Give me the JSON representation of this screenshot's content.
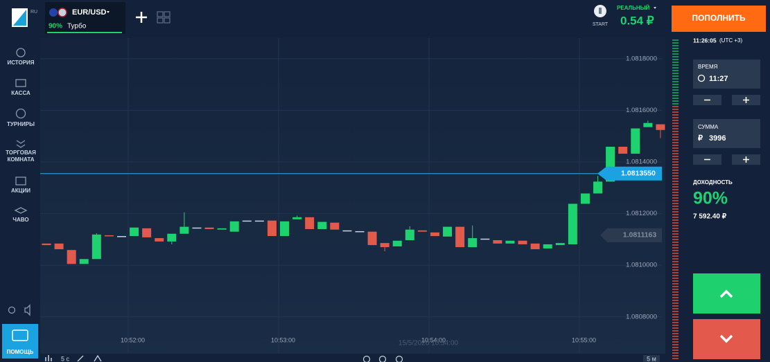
{
  "header": {
    "logo_locale": "RU",
    "asset": "EUR/USD",
    "payout": "90%",
    "mode": "Турбо",
    "start": "START",
    "account": "РЕАЛЬНЫЙ",
    "balance": "0.54 ₽",
    "deposit_button": "ПОПОЛНИТЬ"
  },
  "sidebar": {
    "history": "ИСТОРИЯ",
    "cashier": "КАССА",
    "tournaments": "ТУРНИРЫ",
    "trading_room": [
      "ТОРГОВАЯ",
      "КОМНАТА"
    ],
    "promotions": "АКЦИИ",
    "faq": "ЧАВО",
    "help": "ПОМОЩЬ"
  },
  "panel": {
    "server_time": "11:26:05",
    "timezone": "(UTC +3)",
    "time_label": "ВРЕМЯ",
    "time": "11:27",
    "amount_label": "СУММА",
    "currency": "₽",
    "amount": "3996",
    "yield_label": "ДОХОДНОСТЬ",
    "yield": "90%",
    "profit": "7 592.40 ₽"
  },
  "chart": {
    "type": "candlestick",
    "ylim": [
      1.08066,
      1.08188
    ],
    "yticks": [
      {
        "value": 1.0818,
        "label": "1.0818000"
      },
      {
        "value": 1.0816,
        "label": "1.0816000"
      },
      {
        "value": 1.0814,
        "label": "1.0814000"
      },
      {
        "value": 1.0812,
        "label": "1.0812000"
      },
      {
        "value": 1.081,
        "label": "1.0810000"
      },
      {
        "value": 1.0808,
        "label": "1.0808000"
      }
    ],
    "xticks": [
      "10:52:00",
      "10:53:00",
      "10:54:00",
      "10:55:00"
    ],
    "date_label": "15/5/2020 10:54:00",
    "current_price": {
      "value": 1.081355,
      "label": "1.0813550"
    },
    "marker_price": 1.0811163,
    "up_color": "#1ed26f",
    "down_color": "#e25a4c",
    "timeframe": "5 с",
    "chart_period": "5 м",
    "candles": [
      {
        "o": 1.081084,
        "c": 1.081078
      },
      {
        "o": 1.081084,
        "c": 1.081062
      },
      {
        "o": 1.081059,
        "c": 1.081005
      },
      {
        "o": 1.081005,
        "c": 1.081024
      },
      {
        "o": 1.081024,
        "c": 1.081119,
        "h": 1.081124
      },
      {
        "o": 1.081116,
        "c": 1.081113
      },
      {
        "o": 1.081113,
        "c": 1.081113
      },
      {
        "o": 1.081113,
        "c": 1.081146
      },
      {
        "o": 1.081143,
        "c": 1.081108
      },
      {
        "o": 1.081105,
        "c": 1.081092
      },
      {
        "o": 1.081092,
        "c": 1.081122,
        "l": 1.081081
      },
      {
        "o": 1.081122,
        "c": 1.081149,
        "h": 1.081205
      },
      {
        "o": 1.081146,
        "c": 1.081146
      },
      {
        "o": 1.081146,
        "c": 1.08114
      },
      {
        "o": 1.081138,
        "c": 1.081143
      },
      {
        "o": 1.08113,
        "c": 1.08117
      },
      {
        "o": 1.081173,
        "c": 1.081173
      },
      {
        "o": 1.081173,
        "c": 1.081173
      },
      {
        "o": 1.081173,
        "c": 1.081113
      },
      {
        "o": 1.081113,
        "c": 1.08117
      },
      {
        "o": 1.081178,
        "c": 1.081186,
        "h": 1.081192
      },
      {
        "o": 1.081186,
        "c": 1.08114
      },
      {
        "o": 1.08114,
        "c": 1.081168
      },
      {
        "o": 1.081165,
        "c": 1.081138
      },
      {
        "o": 1.081135,
        "c": 1.081135
      },
      {
        "o": 1.081132,
        "c": 1.081132
      },
      {
        "o": 1.08113,
        "c": 1.081078
      },
      {
        "o": 1.081086,
        "c": 1.08107,
        "l": 1.081054
      },
      {
        "o": 1.081073,
        "c": 1.081095
      },
      {
        "o": 1.081097,
        "c": 1.081138,
        "h": 1.081151
      },
      {
        "o": 1.081135,
        "c": 1.08113
      },
      {
        "o": 1.081127,
        "c": 1.081113
      },
      {
        "o": 1.081111,
        "c": 1.081149
      },
      {
        "o": 1.081149,
        "c": 1.08107
      },
      {
        "o": 1.08107,
        "c": 1.081105,
        "h": 1.081154
      },
      {
        "o": 1.081103,
        "c": 1.081103
      },
      {
        "o": 1.081097,
        "c": 1.081084
      },
      {
        "o": 1.081084,
        "c": 1.081095
      },
      {
        "o": 1.081095,
        "c": 1.081081
      },
      {
        "o": 1.081084,
        "c": 1.081062
      },
      {
        "o": 1.081065,
        "c": 1.081081
      },
      {
        "o": 1.081078,
        "c": 1.081086
      },
      {
        "o": 1.081081,
        "c": 1.081238
      },
      {
        "o": 1.081238,
        "c": 1.081278
      },
      {
        "o": 1.081278,
        "c": 1.081324,
        "h": 1.081346
      },
      {
        "o": 1.081324,
        "c": 1.081459
      },
      {
        "o": 1.081459,
        "c": 1.081432
      },
      {
        "o": 1.081432,
        "c": 1.08153
      },
      {
        "o": 1.081535,
        "c": 1.081551,
        "h": 1.08156
      },
      {
        "o": 1.081546,
        "c": 1.081524,
        "l": 1.081492
      }
    ]
  }
}
